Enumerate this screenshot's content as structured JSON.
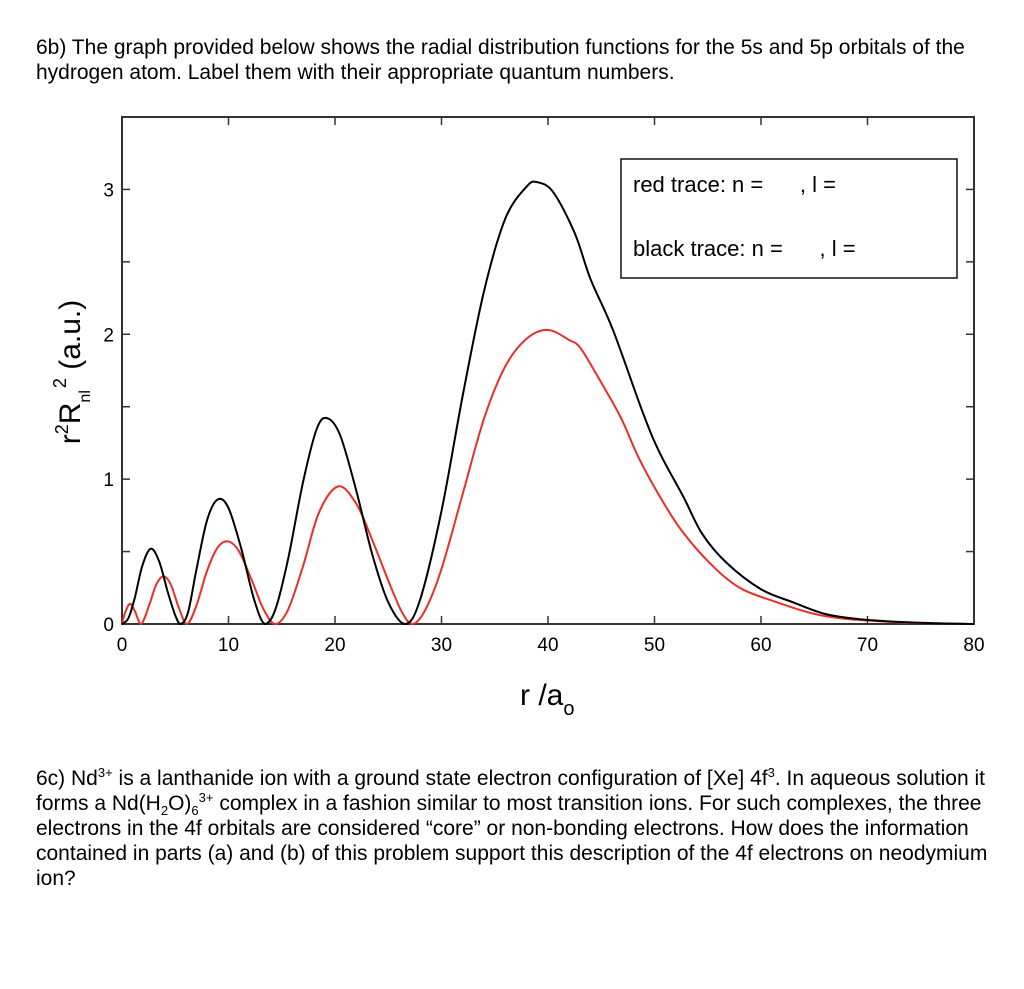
{
  "question_6b": {
    "text": "6b) The graph provided below shows the radial distribution functions for the 5s and 5p orbitals of the hydrogen atom. Label them with their appropriate quantum numbers."
  },
  "question_6c": {
    "part1": "6c) Nd",
    "sup1": "3+",
    "part2": " is a lanthanide ion with a ground state electron configuration of [Xe] 4f",
    "sup2": "3",
    "part3": ". In aqueous solution it forms a Nd(H",
    "sub1": "2",
    "part4": "O)",
    "sub2": "6",
    "sup3": "3+",
    "part5": " complex in a fashion similar to most transition ions. For such complexes, the three electrons in the 4f orbitals are considered “core” or non-bonding electrons. How does the information contained in parts (a) and (b) of this problem support this description of the 4f electrons on neodymium ion?"
  },
  "chart_data": {
    "type": "line",
    "title": "",
    "xlabel": "r /a",
    "xlabel_sub": "o",
    "ylabel": "r",
    "ylabel_sup": "2",
    "ylabel_R": "R",
    "ylabel_sub": "nl",
    "ylabel_sup2": "2",
    "ylabel_units": " (a.u.)",
    "xlim": [
      0,
      80
    ],
    "ylim": [
      0,
      3.5
    ],
    "xticks": [
      0,
      10,
      20,
      30,
      40,
      50,
      60,
      70,
      80
    ],
    "xtick_labels": [
      "0",
      "10",
      "20",
      "30",
      "40",
      "50",
      "60",
      "70",
      "80"
    ],
    "yticks_major": [
      0,
      1,
      2,
      3
    ],
    "ytick_labels": [
      "0",
      "1",
      "2",
      "3"
    ],
    "yticks_minor": [
      0.5,
      1.5,
      2.5
    ],
    "grid": false,
    "legend": {
      "placement": "top-right",
      "lines": [
        "red trace: n =      , l =",
        "black trace: n =      , l ="
      ]
    },
    "series": [
      {
        "name": "red trace",
        "color": "#e8302a",
        "points": [
          [
            0,
            0
          ],
          [
            0.3,
            0.08
          ],
          [
            0.75,
            0.14
          ],
          [
            1.2,
            0.09
          ],
          [
            1.8,
            0
          ],
          [
            2.6,
            0.14
          ],
          [
            3.2,
            0.27
          ],
          [
            3.9,
            0.33
          ],
          [
            4.6,
            0.27
          ],
          [
            5.3,
            0.12
          ],
          [
            6.1,
            0
          ],
          [
            7.0,
            0.13
          ],
          [
            8.0,
            0.37
          ],
          [
            9.0,
            0.53
          ],
          [
            10.0,
            0.57
          ],
          [
            11.0,
            0.5
          ],
          [
            12.2,
            0.3
          ],
          [
            13.3,
            0.1
          ],
          [
            14.4,
            0
          ],
          [
            15.6,
            0.1
          ],
          [
            17.0,
            0.4
          ],
          [
            18.5,
            0.77
          ],
          [
            20.3,
            0.95
          ],
          [
            22.0,
            0.83
          ],
          [
            23.5,
            0.58
          ],
          [
            25.0,
            0.3
          ],
          [
            26.3,
            0.08
          ],
          [
            27.3,
            0
          ],
          [
            28.5,
            0.1
          ],
          [
            30.0,
            0.38
          ],
          [
            32.0,
            0.9
          ],
          [
            34.0,
            1.42
          ],
          [
            36.0,
            1.78
          ],
          [
            38.0,
            1.97
          ],
          [
            40.0,
            2.03
          ],
          [
            42.0,
            1.96
          ],
          [
            43.0,
            1.91
          ],
          [
            44.5,
            1.73
          ],
          [
            46.8,
            1.43
          ],
          [
            48.5,
            1.15
          ],
          [
            50.5,
            0.88
          ],
          [
            52.5,
            0.65
          ],
          [
            55.2,
            0.42
          ],
          [
            58.0,
            0.25
          ],
          [
            61.5,
            0.15
          ],
          [
            65.0,
            0.07
          ],
          [
            68.0,
            0.035
          ],
          [
            72.0,
            0.015
          ],
          [
            76.0,
            0.005
          ],
          [
            80.0,
            0.0
          ]
        ]
      },
      {
        "name": "black trace",
        "color": "#000000",
        "points": [
          [
            0,
            0
          ],
          [
            0.6,
            0.04
          ],
          [
            1.2,
            0.18
          ],
          [
            1.9,
            0.4
          ],
          [
            2.7,
            0.52
          ],
          [
            3.5,
            0.43
          ],
          [
            4.3,
            0.22
          ],
          [
            5.0,
            0.06
          ],
          [
            5.5,
            0
          ],
          [
            6.2,
            0.08
          ],
          [
            7.0,
            0.38
          ],
          [
            8.0,
            0.72
          ],
          [
            9.0,
            0.86
          ],
          [
            10.0,
            0.8
          ],
          [
            11.2,
            0.52
          ],
          [
            12.4,
            0.17
          ],
          [
            13.4,
            0
          ],
          [
            14.4,
            0.1
          ],
          [
            15.6,
            0.45
          ],
          [
            17.0,
            0.98
          ],
          [
            18.3,
            1.35
          ],
          [
            19.3,
            1.42
          ],
          [
            20.5,
            1.3
          ],
          [
            22.0,
            0.92
          ],
          [
            23.5,
            0.48
          ],
          [
            25.0,
            0.15
          ],
          [
            26.6,
            0
          ],
          [
            28.0,
            0.17
          ],
          [
            30.0,
            0.78
          ],
          [
            32.0,
            1.58
          ],
          [
            34.0,
            2.3
          ],
          [
            36.0,
            2.8
          ],
          [
            38.0,
            3.02
          ],
          [
            39.0,
            3.05
          ],
          [
            40.5,
            2.98
          ],
          [
            42.5,
            2.7
          ],
          [
            44.0,
            2.38
          ],
          [
            46.1,
            2.03
          ],
          [
            48.9,
            1.46
          ],
          [
            50.5,
            1.18
          ],
          [
            52.7,
            0.88
          ],
          [
            54.5,
            0.62
          ],
          [
            56.8,
            0.42
          ],
          [
            60.0,
            0.24
          ],
          [
            63.0,
            0.15
          ],
          [
            66.0,
            0.07
          ],
          [
            69.0,
            0.035
          ],
          [
            72.0,
            0.018
          ],
          [
            76.0,
            0.006
          ],
          [
            80.0,
            0.0
          ]
        ]
      }
    ]
  }
}
